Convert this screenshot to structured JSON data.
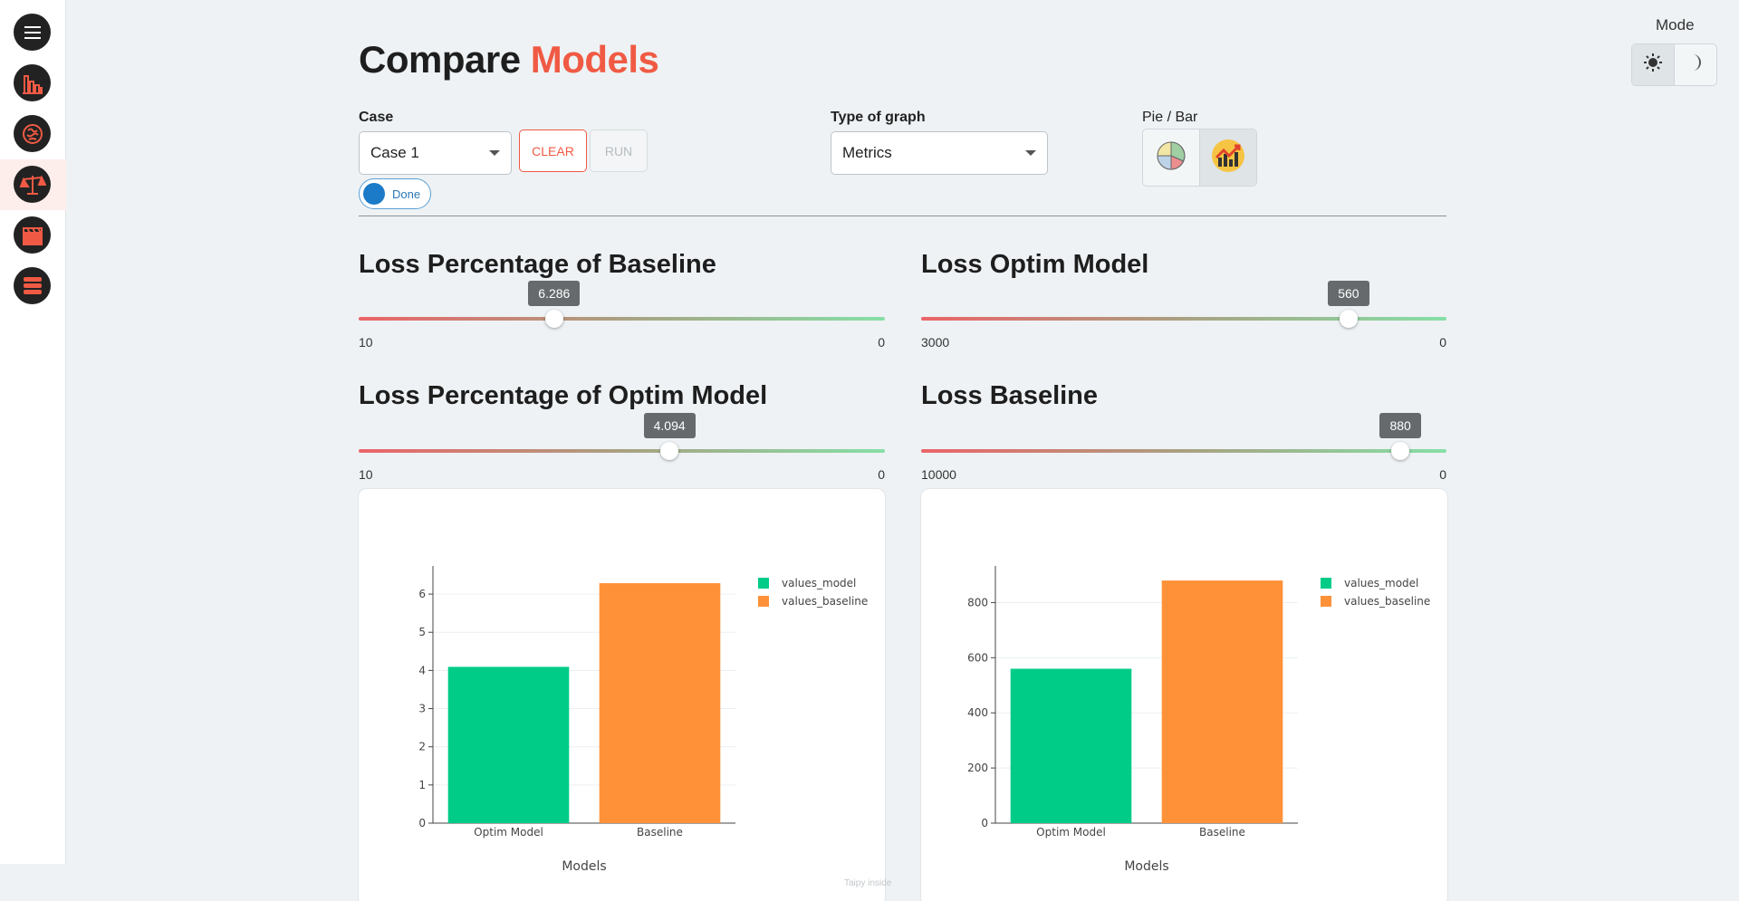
{
  "sidebar": {
    "items": [
      {
        "name": "menu-icon"
      },
      {
        "name": "bar-chart-icon"
      },
      {
        "name": "brain-icon"
      },
      {
        "name": "balance-scale-icon"
      },
      {
        "name": "clapperboard-icon"
      },
      {
        "name": "database-icon"
      }
    ],
    "active_index": 3,
    "accent": "#f05a44"
  },
  "mode": {
    "label": "Mode",
    "options": [
      "light",
      "dark"
    ],
    "selected": "light"
  },
  "header": {
    "title_part1": "Compare",
    "title_part2": "Models"
  },
  "controls": {
    "case_label": "Case",
    "case_value": "Case 1",
    "clear_label": "CLEAR",
    "run_label": "RUN",
    "status_label": "Done",
    "graph_type_label": "Type of graph",
    "graph_type_value": "Metrics",
    "pie_bar_label": "Pie / Bar",
    "pie_bar_selected": "bar"
  },
  "sliders": [
    {
      "title": "Loss Percentage of Baseline",
      "value": "6.286",
      "min_label": "10",
      "max_label": "0",
      "fraction": 0.3714
    },
    {
      "title": "Loss Optim Model",
      "value": "560",
      "min_label": "3000",
      "max_label": "0",
      "fraction": 0.8133
    },
    {
      "title": "Loss Percentage of Optim Model",
      "value": "4.094",
      "min_label": "10",
      "max_label": "0",
      "fraction": 0.5906
    },
    {
      "title": "Loss Baseline",
      "value": "880",
      "min_label": "10000",
      "max_label": "0",
      "fraction": 0.912
    }
  ],
  "chart_data": [
    {
      "type": "bar",
      "categories": [
        "Optim Model",
        "Baseline"
      ],
      "series": [
        {
          "name": "values_model",
          "values": [
            4.094,
            null
          ],
          "color": "#00cc88"
        },
        {
          "name": "values_baseline",
          "values": [
            null,
            6.286
          ],
          "color": "#ff9138"
        }
      ],
      "xlabel": "Models",
      "ylabel": "",
      "ylim": [
        0,
        6.5
      ],
      "yticks": [
        0,
        1,
        2,
        3,
        4,
        5,
        6
      ],
      "legend": "top-right",
      "grid": true
    },
    {
      "type": "bar",
      "categories": [
        "Optim Model",
        "Baseline"
      ],
      "series": [
        {
          "name": "values_model",
          "values": [
            560,
            null
          ],
          "color": "#00cc88"
        },
        {
          "name": "values_baseline",
          "values": [
            null,
            880
          ],
          "color": "#ff9138"
        }
      ],
      "xlabel": "Models",
      "ylabel": "",
      "ylim": [
        0,
        900
      ],
      "yticks": [
        0,
        200,
        400,
        600,
        800
      ],
      "legend": "top-right",
      "grid": true
    }
  ],
  "footer": {
    "watermark": "Taipy inside"
  }
}
